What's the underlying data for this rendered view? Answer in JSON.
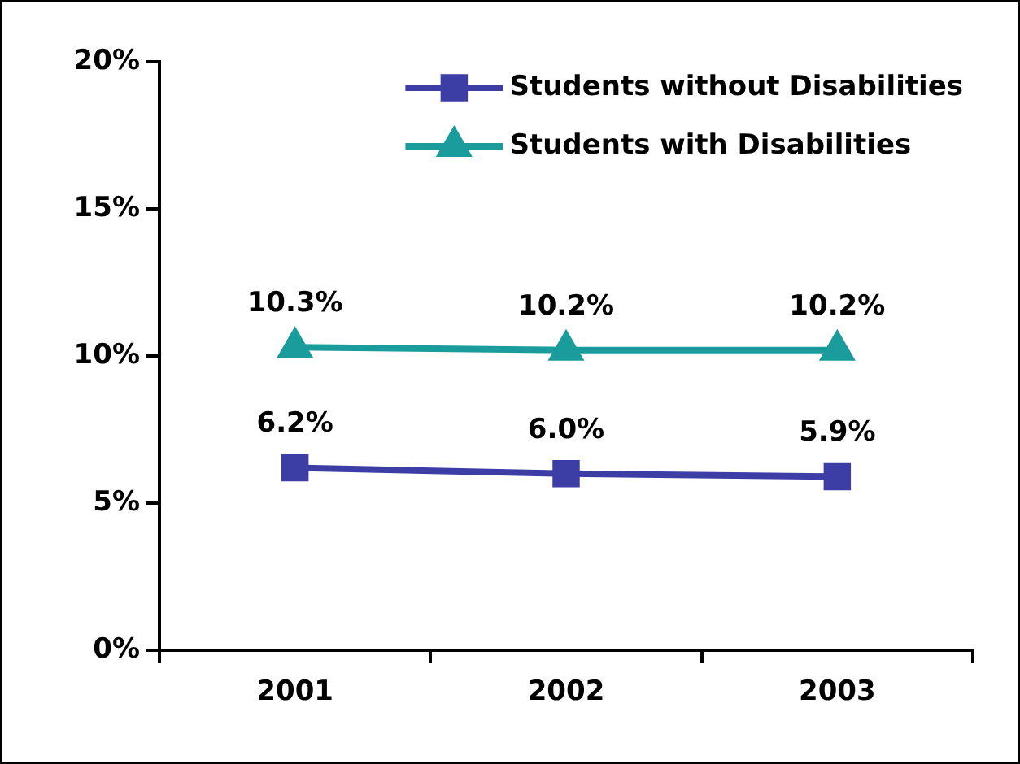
{
  "chart_data": {
    "type": "line",
    "categories": [
      "2001",
      "2002",
      "2003"
    ],
    "series": [
      {
        "name": "Students without Disabilities",
        "color": "#3d3da6",
        "marker": "square",
        "values": [
          6.2,
          6.0,
          5.9
        ],
        "value_labels": [
          "6.2%",
          "6.0%",
          "5.9%"
        ]
      },
      {
        "name": "Students with Disabilities",
        "color": "#1a9c9c",
        "marker": "triangle",
        "values": [
          10.3,
          10.2,
          10.2
        ],
        "value_labels": [
          "10.3%",
          "10.2%",
          "10.2%"
        ]
      }
    ],
    "ylim": [
      0,
      20
    ],
    "yticks": [
      {
        "value": 0,
        "label": "0%"
      },
      {
        "value": 5,
        "label": "5%"
      },
      {
        "value": 10,
        "label": "10%"
      },
      {
        "value": 15,
        "label": "15%"
      },
      {
        "value": 20,
        "label": "20%"
      }
    ],
    "grid": false,
    "legend": "top right",
    "line_style": "solid"
  }
}
